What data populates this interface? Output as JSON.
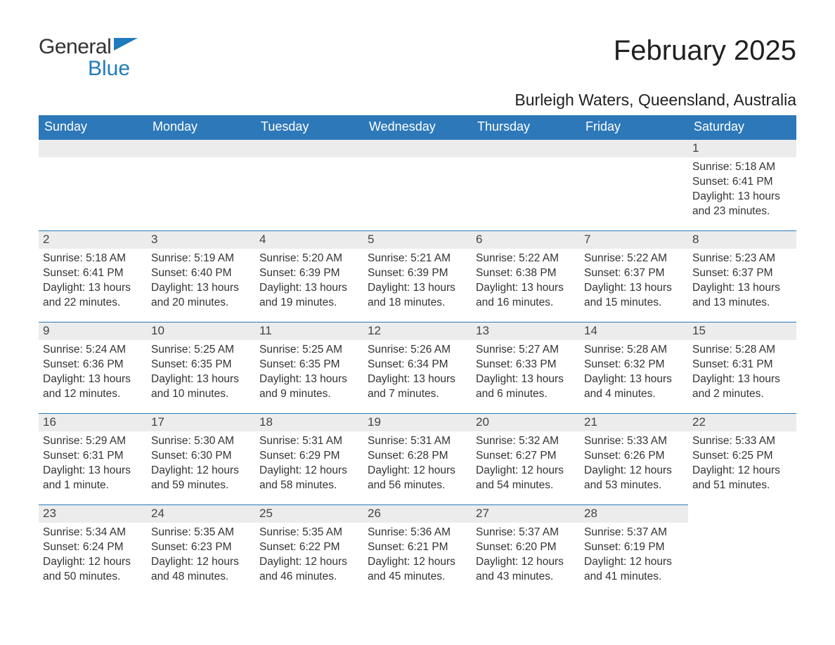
{
  "logo": {
    "text1": "General",
    "text2": "Blue"
  },
  "colors": {
    "accent": "#2d78b9",
    "logo_black": "#333333",
    "logo_blue": "#1f7bbf",
    "header_bg": "#2d78b9",
    "header_text": "#ffffff",
    "daynum_bg": "#ececec",
    "body_text": "#333333"
  },
  "title": "February 2025",
  "location": "Burleigh Waters, Queensland, Australia",
  "weekday_labels": [
    "Sunday",
    "Monday",
    "Tuesday",
    "Wednesday",
    "Thursday",
    "Friday",
    "Saturday"
  ],
  "weeks": [
    [
      null,
      null,
      null,
      null,
      null,
      null,
      {
        "day": "1",
        "sunrise": "Sunrise: 5:18 AM",
        "sunset": "Sunset: 6:41 PM",
        "daylight1": "Daylight: 13 hours",
        "daylight2": "and 23 minutes."
      }
    ],
    [
      {
        "day": "2",
        "sunrise": "Sunrise: 5:18 AM",
        "sunset": "Sunset: 6:41 PM",
        "daylight1": "Daylight: 13 hours",
        "daylight2": "and 22 minutes."
      },
      {
        "day": "3",
        "sunrise": "Sunrise: 5:19 AM",
        "sunset": "Sunset: 6:40 PM",
        "daylight1": "Daylight: 13 hours",
        "daylight2": "and 20 minutes."
      },
      {
        "day": "4",
        "sunrise": "Sunrise: 5:20 AM",
        "sunset": "Sunset: 6:39 PM",
        "daylight1": "Daylight: 13 hours",
        "daylight2": "and 19 minutes."
      },
      {
        "day": "5",
        "sunrise": "Sunrise: 5:21 AM",
        "sunset": "Sunset: 6:39 PM",
        "daylight1": "Daylight: 13 hours",
        "daylight2": "and 18 minutes."
      },
      {
        "day": "6",
        "sunrise": "Sunrise: 5:22 AM",
        "sunset": "Sunset: 6:38 PM",
        "daylight1": "Daylight: 13 hours",
        "daylight2": "and 16 minutes."
      },
      {
        "day": "7",
        "sunrise": "Sunrise: 5:22 AM",
        "sunset": "Sunset: 6:37 PM",
        "daylight1": "Daylight: 13 hours",
        "daylight2": "and 15 minutes."
      },
      {
        "day": "8",
        "sunrise": "Sunrise: 5:23 AM",
        "sunset": "Sunset: 6:37 PM",
        "daylight1": "Daylight: 13 hours",
        "daylight2": "and 13 minutes."
      }
    ],
    [
      {
        "day": "9",
        "sunrise": "Sunrise: 5:24 AM",
        "sunset": "Sunset: 6:36 PM",
        "daylight1": "Daylight: 13 hours",
        "daylight2": "and 12 minutes."
      },
      {
        "day": "10",
        "sunrise": "Sunrise: 5:25 AM",
        "sunset": "Sunset: 6:35 PM",
        "daylight1": "Daylight: 13 hours",
        "daylight2": "and 10 minutes."
      },
      {
        "day": "11",
        "sunrise": "Sunrise: 5:25 AM",
        "sunset": "Sunset: 6:35 PM",
        "daylight1": "Daylight: 13 hours",
        "daylight2": "and 9 minutes."
      },
      {
        "day": "12",
        "sunrise": "Sunrise: 5:26 AM",
        "sunset": "Sunset: 6:34 PM",
        "daylight1": "Daylight: 13 hours",
        "daylight2": "and 7 minutes."
      },
      {
        "day": "13",
        "sunrise": "Sunrise: 5:27 AM",
        "sunset": "Sunset: 6:33 PM",
        "daylight1": "Daylight: 13 hours",
        "daylight2": "and 6 minutes."
      },
      {
        "day": "14",
        "sunrise": "Sunrise: 5:28 AM",
        "sunset": "Sunset: 6:32 PM",
        "daylight1": "Daylight: 13 hours",
        "daylight2": "and 4 minutes."
      },
      {
        "day": "15",
        "sunrise": "Sunrise: 5:28 AM",
        "sunset": "Sunset: 6:31 PM",
        "daylight1": "Daylight: 13 hours",
        "daylight2": "and 2 minutes."
      }
    ],
    [
      {
        "day": "16",
        "sunrise": "Sunrise: 5:29 AM",
        "sunset": "Sunset: 6:31 PM",
        "daylight1": "Daylight: 13 hours",
        "daylight2": "and 1 minute."
      },
      {
        "day": "17",
        "sunrise": "Sunrise: 5:30 AM",
        "sunset": "Sunset: 6:30 PM",
        "daylight1": "Daylight: 12 hours",
        "daylight2": "and 59 minutes."
      },
      {
        "day": "18",
        "sunrise": "Sunrise: 5:31 AM",
        "sunset": "Sunset: 6:29 PM",
        "daylight1": "Daylight: 12 hours",
        "daylight2": "and 58 minutes."
      },
      {
        "day": "19",
        "sunrise": "Sunrise: 5:31 AM",
        "sunset": "Sunset: 6:28 PM",
        "daylight1": "Daylight: 12 hours",
        "daylight2": "and 56 minutes."
      },
      {
        "day": "20",
        "sunrise": "Sunrise: 5:32 AM",
        "sunset": "Sunset: 6:27 PM",
        "daylight1": "Daylight: 12 hours",
        "daylight2": "and 54 minutes."
      },
      {
        "day": "21",
        "sunrise": "Sunrise: 5:33 AM",
        "sunset": "Sunset: 6:26 PM",
        "daylight1": "Daylight: 12 hours",
        "daylight2": "and 53 minutes."
      },
      {
        "day": "22",
        "sunrise": "Sunrise: 5:33 AM",
        "sunset": "Sunset: 6:25 PM",
        "daylight1": "Daylight: 12 hours",
        "daylight2": "and 51 minutes."
      }
    ],
    [
      {
        "day": "23",
        "sunrise": "Sunrise: 5:34 AM",
        "sunset": "Sunset: 6:24 PM",
        "daylight1": "Daylight: 12 hours",
        "daylight2": "and 50 minutes."
      },
      {
        "day": "24",
        "sunrise": "Sunrise: 5:35 AM",
        "sunset": "Sunset: 6:23 PM",
        "daylight1": "Daylight: 12 hours",
        "daylight2": "and 48 minutes."
      },
      {
        "day": "25",
        "sunrise": "Sunrise: 5:35 AM",
        "sunset": "Sunset: 6:22 PM",
        "daylight1": "Daylight: 12 hours",
        "daylight2": "and 46 minutes."
      },
      {
        "day": "26",
        "sunrise": "Sunrise: 5:36 AM",
        "sunset": "Sunset: 6:21 PM",
        "daylight1": "Daylight: 12 hours",
        "daylight2": "and 45 minutes."
      },
      {
        "day": "27",
        "sunrise": "Sunrise: 5:37 AM",
        "sunset": "Sunset: 6:20 PM",
        "daylight1": "Daylight: 12 hours",
        "daylight2": "and 43 minutes."
      },
      {
        "day": "28",
        "sunrise": "Sunrise: 5:37 AM",
        "sunset": "Sunset: 6:19 PM",
        "daylight1": "Daylight: 12 hours",
        "daylight2": "and 41 minutes."
      },
      null
    ]
  ]
}
